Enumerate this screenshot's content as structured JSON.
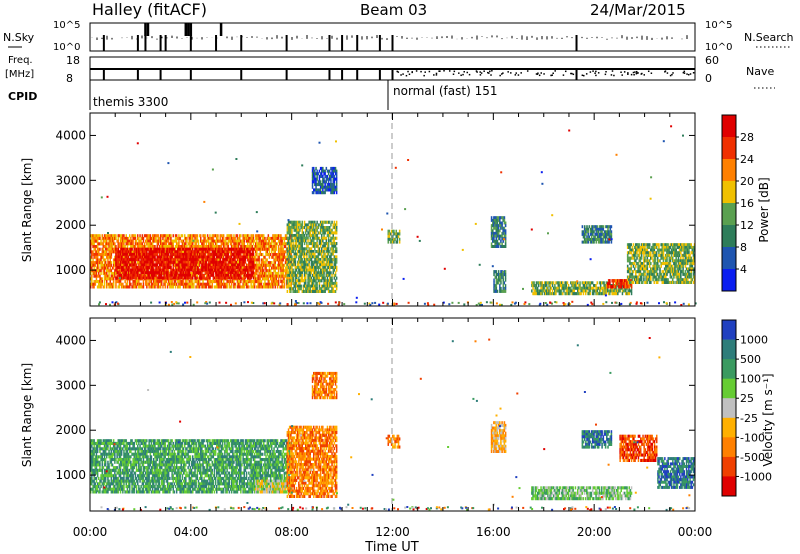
{
  "header": {
    "station": "Halley (fitACF)",
    "beam": "Beam 03",
    "date": "24/Mar/2015"
  },
  "strips": {
    "nsky_label": "N.Sky",
    "nsky_ticks": [
      "10^5",
      "10^0"
    ],
    "nsearch_label": "N.Search",
    "nsearch_ticks": [
      "10^5",
      "10^0"
    ],
    "freq_label": "Freq.",
    "freq_unit": "[MHz]",
    "freq_ticks": [
      "18",
      "8"
    ],
    "nave_label": "Nave",
    "nave_ticks": [
      "60",
      "0"
    ],
    "cpid_label": "CPID",
    "cpid_segments": [
      {
        "name": "themis 3300",
        "start": 0,
        "end": 12
      },
      {
        "name": "normal (fast) 151",
        "start": 12,
        "end": 24
      }
    ]
  },
  "chart_data": [
    {
      "type": "heatmap",
      "quantity": "Power",
      "ylabel": "Slant Range [km]",
      "colorbar_label": "Power [dB]",
      "colorbar_ticks": [
        "4",
        "8",
        "12",
        "16",
        "20",
        "24",
        "28"
      ],
      "colors": [
        "#0a1ef0",
        "#1e55b0",
        "#2e7d5a",
        "#5aa050",
        "#f0c000",
        "#ff8000",
        "#f03000",
        "#e00000"
      ],
      "xlim_hours": [
        0,
        24
      ],
      "ylim_km": [
        200,
        4500
      ],
      "yticks": [
        "1000",
        "2000",
        "3000",
        "4000"
      ],
      "xticks": [
        "00:00",
        "04:00",
        "08:00",
        "12:00",
        "16:00",
        "20:00",
        "00:00"
      ],
      "regions": [
        {
          "t0": 0.0,
          "t1": 8.0,
          "r0": 600,
          "r1": 1800,
          "level": 5
        },
        {
          "t0": 1.0,
          "t1": 6.5,
          "r0": 800,
          "r1": 1500,
          "level": 7
        },
        {
          "t0": 7.8,
          "t1": 9.8,
          "r0": 500,
          "r1": 2100,
          "level": 3
        },
        {
          "t0": 8.8,
          "t1": 9.8,
          "r0": 2700,
          "r1": 3300,
          "level": 1
        },
        {
          "t0": 11.8,
          "t1": 12.3,
          "r0": 1600,
          "r1": 1900,
          "level": 3
        },
        {
          "t0": 15.9,
          "t1": 16.5,
          "r0": 1500,
          "r1": 2200,
          "level": 2
        },
        {
          "t0": 16.0,
          "t1": 16.5,
          "r0": 500,
          "r1": 1000,
          "level": 2
        },
        {
          "t0": 17.5,
          "t1": 21.5,
          "r0": 450,
          "r1": 750,
          "level": 3
        },
        {
          "t0": 20.5,
          "t1": 21.5,
          "r0": 600,
          "r1": 800,
          "level": 6
        },
        {
          "t0": 19.5,
          "t1": 20.7,
          "r0": 1600,
          "r1": 2000,
          "level": 2
        },
        {
          "t0": 21.3,
          "t1": 24.0,
          "r0": 700,
          "r1": 1600,
          "level": 3
        }
      ]
    },
    {
      "type": "heatmap",
      "quantity": "Velocity",
      "ylabel": "Slant Range [km]",
      "colorbar_label": "Velocity [m s⁻¹]",
      "colorbar_ticks": [
        "1000",
        "500",
        "100",
        "25",
        "-25",
        "-100",
        "-500",
        "-1000"
      ],
      "colors": [
        "#2040c0",
        "#2e7d7a",
        "#3a9a60",
        "#66cc33",
        "#c0c0c0",
        "#ffb000",
        "#ff8000",
        "#f04000",
        "#e00000"
      ],
      "xlim_hours": [
        0,
        24
      ],
      "ylim_km": [
        200,
        4500
      ],
      "yticks": [
        "1000",
        "2000",
        "3000",
        "4000"
      ],
      "xticks": [
        "00:00",
        "04:00",
        "08:00",
        "12:00",
        "16:00",
        "20:00",
        "00:00"
      ],
      "xlabel": "Time UT",
      "regions": [
        {
          "t0": 0.0,
          "t1": 8.0,
          "r0": 600,
          "r1": 1800,
          "level": 2
        },
        {
          "t0": 6.5,
          "t1": 7.8,
          "r0": 600,
          "r1": 900,
          "level": 4
        },
        {
          "t0": 7.8,
          "t1": 9.8,
          "r0": 500,
          "r1": 2100,
          "level": 6
        },
        {
          "t0": 8.8,
          "t1": 9.8,
          "r0": 2700,
          "r1": 3300,
          "level": 6
        },
        {
          "t0": 11.8,
          "t1": 12.3,
          "r0": 1600,
          "r1": 1900,
          "level": 6
        },
        {
          "t0": 15.9,
          "t1": 16.5,
          "r0": 1500,
          "r1": 2200,
          "level": 5
        },
        {
          "t0": 17.5,
          "t1": 21.5,
          "r0": 450,
          "r1": 750,
          "level": 3
        },
        {
          "t0": 19.5,
          "t1": 20.7,
          "r0": 1600,
          "r1": 2000,
          "level": 1
        },
        {
          "t0": 21.0,
          "t1": 22.5,
          "r0": 1300,
          "r1": 1900,
          "level": 7
        },
        {
          "t0": 22.5,
          "t1": 24.0,
          "r0": 700,
          "r1": 1400,
          "level": 1
        }
      ]
    }
  ]
}
